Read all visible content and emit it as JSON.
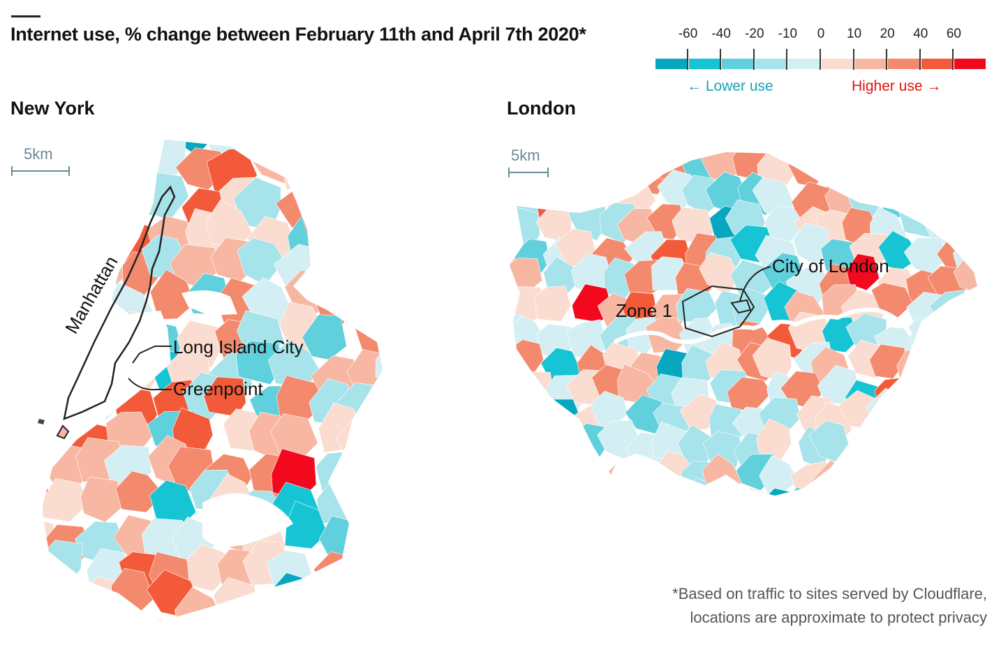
{
  "title": "Internet use, % change between February 11th and April 7th 2020*",
  "legend": {
    "tick_labels": [
      "-60",
      "-40",
      "-20",
      "-10",
      "0",
      "10",
      "20",
      "40",
      "60"
    ],
    "colors": [
      "#06a7bf",
      "#17c4d3",
      "#5fd0dc",
      "#a7e3ea",
      "#d3eff3",
      "#fbdcd0",
      "#f7b7a3",
      "#f48a6d",
      "#f25a3a",
      "#f2091d"
    ],
    "lower_label": "← Lower use",
    "higher_label": "Higher use →"
  },
  "maps": {
    "new_york": {
      "title": "New York",
      "scale_label": "5km",
      "annotations": {
        "manhattan": "Manhattan",
        "long_island_city": "Long Island City",
        "greenpoint": "Greenpoint"
      }
    },
    "london": {
      "title": "London",
      "scale_label": "5km",
      "annotations": {
        "city_of_london": "City of London",
        "zone1": "Zone 1"
      }
    }
  },
  "footnote": {
    "line1": "*Based on traffic to sites served by Cloudflare,",
    "line2": "locations are approximate to protect privacy"
  }
}
